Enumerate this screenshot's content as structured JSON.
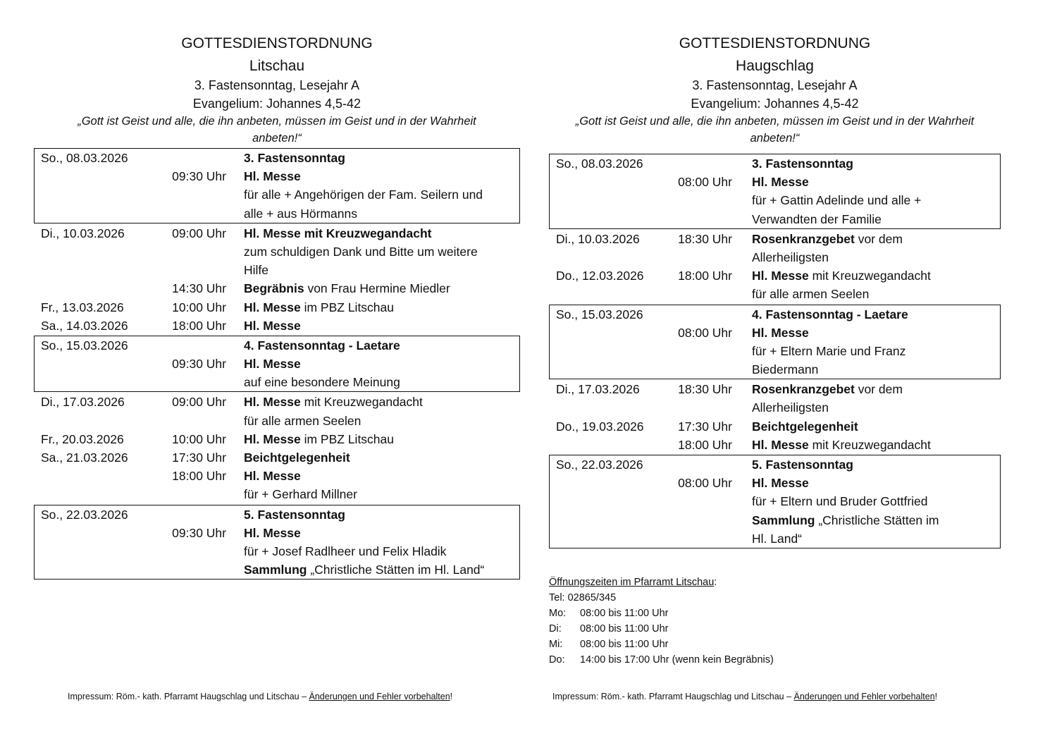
{
  "left": {
    "title": "GOTTESDIENSTORDNUNG",
    "place": "Litschau",
    "sunday": "3.   Fastensonntag, Lesejahr A",
    "gospel": "Evangelium: Johannes 4,5-42",
    "quote1": "„Gott ist Geist und alle, die ihn anbeten, müssen im Geist und in der Wahrheit",
    "quote2": "anbeten!“",
    "blocks": [
      {
        "boxed": true,
        "lines": [
          {
            "date": "So., 08.03.2026",
            "time": "",
            "segs": [
              {
                "t": "3. Fastensonntag",
                "b": true
              }
            ]
          },
          {
            "date": "",
            "time": "09:30 Uhr",
            "segs": [
              {
                "t": "Hl. Messe",
                "b": true
              }
            ]
          },
          {
            "date": "",
            "time": "",
            "segs": [
              {
                "t": "für alle + Angehörigen der Fam. Seilern und",
                "b": false
              }
            ]
          },
          {
            "date": "",
            "time": "",
            "segs": [
              {
                "t": "alle + aus Hörmanns",
                "b": false
              }
            ]
          }
        ]
      },
      {
        "boxed": false,
        "lines": [
          {
            "date": "Di., 10.03.2026",
            "time": "09:00 Uhr",
            "segs": [
              {
                "t": "Hl. Messe mit Kreuzwegandacht",
                "b": true
              }
            ]
          },
          {
            "date": "",
            "time": "",
            "segs": [
              {
                "t": "zum schuldigen Dank und Bitte um weitere",
                "b": false
              }
            ]
          },
          {
            "date": "",
            "time": "",
            "segs": [
              {
                "t": "Hilfe",
                "b": false
              }
            ]
          },
          {
            "date": "",
            "time": "14:30 Uhr",
            "segs": [
              {
                "t": "Begräbnis",
                "b": true
              },
              {
                "t": " von Frau Hermine Miedler",
                "b": false
              }
            ]
          },
          {
            "date": "Fr., 13.03.2026",
            "time": "10:00 Uhr",
            "segs": [
              {
                "t": "Hl. Messe",
                "b": true
              },
              {
                "t": " im PBZ Litschau",
                "b": false
              }
            ]
          },
          {
            "date": "Sa., 14.03.2026",
            "time": "18:00 Uhr",
            "segs": [
              {
                "t": "Hl. Messe",
                "b": true
              }
            ]
          }
        ]
      },
      {
        "boxed": true,
        "lines": [
          {
            "date": "So., 15.03.2026",
            "time": "",
            "segs": [
              {
                "t": "4. Fastensonntag - Laetare",
                "b": true
              }
            ]
          },
          {
            "date": "",
            "time": "09:30 Uhr",
            "segs": [
              {
                "t": "Hl. Messe",
                "b": true
              }
            ]
          },
          {
            "date": "",
            "time": "",
            "segs": [
              {
                "t": "auf eine besondere Meinung",
                "b": false
              }
            ]
          }
        ]
      },
      {
        "boxed": false,
        "lines": [
          {
            "date": "Di., 17.03.2026",
            "time": "09:00 Uhr",
            "segs": [
              {
                "t": "Hl. Messe",
                "b": true
              },
              {
                "t": " mit Kreuzwegandacht",
                "b": false
              }
            ]
          },
          {
            "date": "",
            "time": "",
            "segs": [
              {
                "t": "für alle armen Seelen",
                "b": false
              }
            ]
          },
          {
            "date": "Fr., 20.03.2026",
            "time": "10:00 Uhr",
            "segs": [
              {
                "t": "Hl. Messe",
                "b": true
              },
              {
                "t": " im PBZ Litschau",
                "b": false
              }
            ]
          },
          {
            "date": "Sa., 21.03.2026",
            "time": "17:30 Uhr",
            "segs": [
              {
                "t": "Beichtgelegenheit",
                "b": true
              }
            ]
          },
          {
            "date": "",
            "time": "18:00 Uhr",
            "segs": [
              {
                "t": "Hl. Messe",
                "b": true
              }
            ]
          },
          {
            "date": "",
            "time": "",
            "segs": [
              {
                "t": "für + Gerhard Millner",
                "b": false
              }
            ]
          }
        ]
      },
      {
        "boxed": true,
        "lines": [
          {
            "date": "So., 22.03.2026",
            "time": "",
            "segs": [
              {
                "t": "5. Fastensonntag",
                "b": true
              }
            ]
          },
          {
            "date": "",
            "time": "09:30 Uhr",
            "segs": [
              {
                "t": "Hl. Messe",
                "b": true
              }
            ]
          },
          {
            "date": "",
            "time": "",
            "segs": [
              {
                "t": "für + Josef Radlheer und Felix Hladik",
                "b": false
              }
            ]
          },
          {
            "date": "",
            "time": "",
            "segs": [
              {
                "t": "Sammlung",
                "b": true
              },
              {
                "t": " „Christliche Stätten im Hl. Land“",
                "b": false
              }
            ]
          }
        ]
      }
    ],
    "footer_prefix": "Impressum: Röm.- kath. Pfarramt Haugschlag und Litschau – ",
    "footer_link": "Änderungen und Fehler vorbehalten",
    "footer_suffix": "!"
  },
  "right": {
    "title": "GOTTESDIENSTORDNUNG",
    "place": "Haugschlag",
    "sunday": "3. Fastensonntag, Lesejahr A",
    "gospel": "Evangelium: Johannes 4,5-42",
    "quote1": "„Gott ist Geist und alle, die ihn anbeten, müssen im Geist und in der Wahrheit",
    "quote2": "anbeten!“",
    "blocks": [
      {
        "boxed": true,
        "lines": [
          {
            "date": "So., 08.03.2026",
            "time": "",
            "segs": [
              {
                "t": "3. Fastensonntag",
                "b": true
              }
            ]
          },
          {
            "date": "",
            "time": "08:00 Uhr",
            "segs": [
              {
                "t": "Hl. Messe",
                "b": true
              }
            ]
          },
          {
            "date": "",
            "time": "",
            "segs": [
              {
                "t": "für + Gattin Adelinde und alle +",
                "b": false
              }
            ]
          },
          {
            "date": "",
            "time": "",
            "segs": [
              {
                "t": "Verwandten der Familie",
                "b": false
              }
            ]
          }
        ]
      },
      {
        "boxed": false,
        "lines": [
          {
            "date": "Di., 10.03.2026",
            "time": "18:30 Uhr",
            "segs": [
              {
                "t": "Rosenkranzgebet",
                "b": true
              },
              {
                "t": " vor dem",
                "b": false
              }
            ]
          },
          {
            "date": "",
            "time": "",
            "segs": [
              {
                "t": "Allerheiligsten",
                "b": false
              }
            ]
          },
          {
            "date": "Do., 12.03.2026",
            "time": "18:00 Uhr",
            "segs": [
              {
                "t": "Hl. Messe",
                "b": true
              },
              {
                "t": " mit Kreuzwegandacht",
                "b": false
              }
            ]
          },
          {
            "date": "",
            "time": "",
            "segs": [
              {
                "t": "für alle armen Seelen",
                "b": false
              }
            ]
          }
        ]
      },
      {
        "boxed": true,
        "lines": [
          {
            "date": "So., 15.03.2026",
            "time": "",
            "segs": [
              {
                "t": "4. Fastensonntag - Laetare",
                "b": true
              }
            ]
          },
          {
            "date": "",
            "time": "08:00 Uhr",
            "segs": [
              {
                "t": "Hl. Messe",
                "b": true
              }
            ]
          },
          {
            "date": "",
            "time": "",
            "segs": [
              {
                "t": "für + Eltern Marie und Franz",
                "b": false
              }
            ]
          },
          {
            "date": "",
            "time": "",
            "segs": [
              {
                "t": "Biedermann",
                "b": false
              }
            ]
          }
        ]
      },
      {
        "boxed": false,
        "lines": [
          {
            "date": "Di., 17.03.2026",
            "time": "18:30 Uhr",
            "segs": [
              {
                "t": "Rosenkranzgebet",
                "b": true
              },
              {
                "t": " vor dem",
                "b": false
              }
            ]
          },
          {
            "date": "",
            "time": "",
            "segs": [
              {
                "t": "Allerheiligsten",
                "b": false
              }
            ]
          },
          {
            "date": "Do., 19.03.2026",
            "time": "17:30 Uhr",
            "segs": [
              {
                "t": "Beichtgelegenheit",
                "b": true
              }
            ]
          },
          {
            "date": "",
            "time": "18:00 Uhr",
            "segs": [
              {
                "t": "Hl. Messe",
                "b": true
              },
              {
                "t": " mit Kreuzwegandacht",
                "b": false
              }
            ]
          }
        ]
      },
      {
        "boxed": true,
        "lines": [
          {
            "date": "So., 22.03.2026",
            "time": "",
            "segs": [
              {
                "t": "5. Fastensonntag",
                "b": true
              }
            ]
          },
          {
            "date": "",
            "time": "08:00 Uhr",
            "segs": [
              {
                "t": "Hl. Messe",
                "b": true
              }
            ]
          },
          {
            "date": "",
            "time": "",
            "segs": [
              {
                "t": "für + Eltern und Bruder Gottfried",
                "b": false
              }
            ]
          },
          {
            "date": "",
            "time": "",
            "segs": [
              {
                "t": "Sammlung",
                "b": true
              },
              {
                "t": " „Christliche Stätten im",
                "b": false
              }
            ]
          },
          {
            "date": "",
            "time": "",
            "segs": [
              {
                "t": "Hl. Land“",
                "b": false
              }
            ]
          }
        ]
      }
    ],
    "footer_prefix": "Impressum: Röm.- kath. Pfarramt Haugschlag und Litschau – ",
    "footer_link": "Änderungen und Fehler vorbehalten",
    "footer_suffix": "!"
  },
  "office": {
    "heading": "Öffnungszeiten im Pfarramt Litschau",
    "heading_colon": ":",
    "phone": "Tel: 02865/345",
    "hours": [
      {
        "day": "Mo:",
        "time": "08:00 bis 11:00 Uhr"
      },
      {
        "day": "Di:",
        "time": "08:00 bis 11:00 Uhr"
      },
      {
        "day": "Mi:",
        "time": "08:00 bis 11:00 Uhr"
      },
      {
        "day": "Do:",
        "time": "14:00 bis 17:00 Uhr (wenn kein Begräbnis)"
      }
    ]
  }
}
